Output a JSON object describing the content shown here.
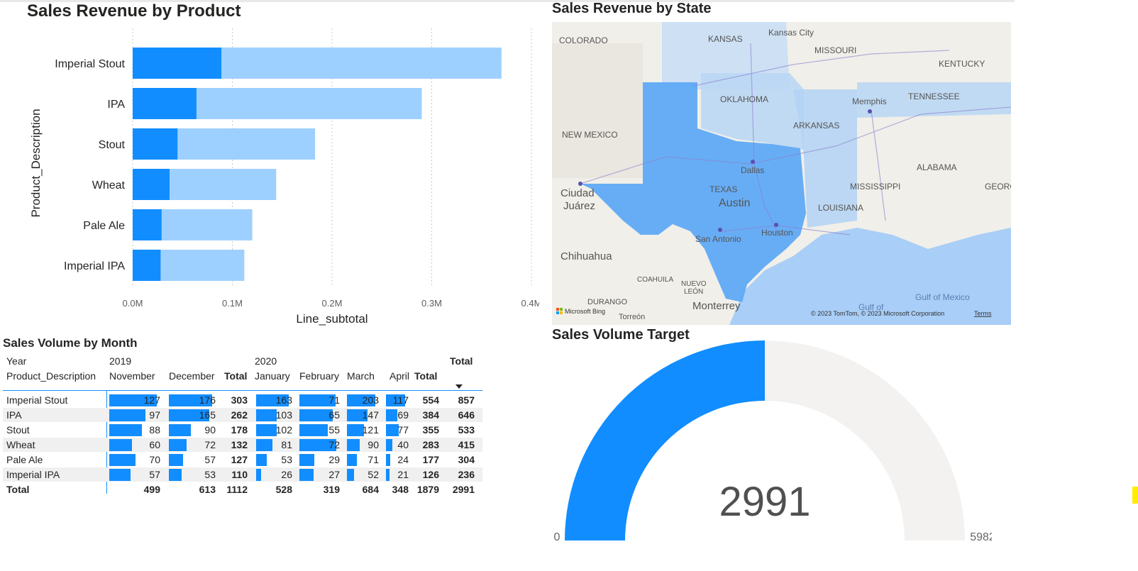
{
  "bar_chart": {
    "title": "Sales Revenue by Product",
    "chart_data": {
      "type": "bar",
      "orientation": "horizontal",
      "title": "Sales Revenue by Product",
      "xlabel": "Line_subtotal",
      "ylabel": "Product_Description",
      "categories": [
        "Imperial Stout",
        "IPA",
        "Stout",
        "Wheat",
        "Pale Ale",
        "Imperial IPA"
      ],
      "series": [
        {
          "values": [
            0.089,
            0.064,
            0.045,
            0.037,
            0.029,
            0.028
          ]
        },
        {
          "values": [
            0.37,
            0.29,
            0.183,
            0.144,
            0.12,
            0.112
          ]
        }
      ],
      "xticks": [
        "0.0M",
        "0.1M",
        "0.2M",
        "0.3M",
        "0.4M"
      ],
      "xlim": [
        0,
        0.4
      ],
      "grid": true,
      "colors": [
        "#118dff",
        "#9ed0ff"
      ]
    }
  },
  "map": {
    "title": "Sales Revenue by State",
    "labels": {
      "colorado": "COLORADO",
      "kansas": "KANSAS",
      "kansas_city": "Kansas City",
      "missouri": "MISSOURI",
      "kentucky": "KENTUCKY",
      "oklahoma": "OKLAHOMA",
      "memphis": "Memphis",
      "tennessee": "TENNESSEE",
      "new_mexico": "NEW MEXICO",
      "arkansas": "ARKANSAS",
      "dallas": "Dallas",
      "alabama": "ALABAMA",
      "ciudad": "Ciudad",
      "juarez": "Juárez",
      "texas": "TEXAS",
      "austin": "Austin",
      "mississippi": "MISSISSIPPI",
      "georgia": "GEORGI",
      "louisiana": "LOUISIANA",
      "houston": "Houston",
      "san_antonio": "San Antonio",
      "chihuahua": "Chihuahua",
      "coahuila": "COAHUILA",
      "nuevo": "NUEVO",
      "leon": "LEÓN",
      "durango": "DURANGO",
      "torreon": "Torreón",
      "monterrey": "Monterrey",
      "gulf_of": "Gulf of",
      "gulf_of_mexico": "Gulf of Mexico",
      "bing": "Microsoft Bing",
      "copyright": "© 2023 TomTom, © 2023 Microsoft Corporation",
      "terms": "Terms"
    }
  },
  "matrix": {
    "title": "Sales Volume by Month",
    "header": {
      "year_label": "Year",
      "product_label": "Product_Description",
      "year_2019": "2019",
      "year_2020": "2020",
      "total_top": "Total",
      "months": [
        "November",
        "December",
        "Total",
        "January",
        "February",
        "March",
        "April",
        "Total"
      ],
      "sort_icon": "sort-descending-icon"
    },
    "rows": [
      {
        "name": "Imperial Stout",
        "v": [
          "127",
          "176",
          "303",
          "163",
          "71",
          "203",
          "117",
          "554",
          "857"
        ]
      },
      {
        "name": "IPA",
        "v": [
          "97",
          "165",
          "262",
          "103",
          "65",
          "147",
          "69",
          "384",
          "646"
        ]
      },
      {
        "name": "Stout",
        "v": [
          "88",
          "90",
          "178",
          "102",
          "55",
          "121",
          "77",
          "355",
          "533"
        ]
      },
      {
        "name": "Wheat",
        "v": [
          "60",
          "72",
          "132",
          "81",
          "72",
          "90",
          "40",
          "283",
          "415"
        ]
      },
      {
        "name": "Pale Ale",
        "v": [
          "70",
          "57",
          "127",
          "53",
          "29",
          "71",
          "24",
          "177",
          "304"
        ]
      },
      {
        "name": "Imperial IPA",
        "v": [
          "57",
          "53",
          "110",
          "26",
          "27",
          "52",
          "21",
          "126",
          "236"
        ]
      }
    ],
    "total_row": {
      "name": "Total",
      "v": [
        "499",
        "613",
        "1112",
        "528",
        "319",
        "684",
        "348",
        "1879",
        "2991"
      ]
    }
  },
  "gauge": {
    "title": "Sales Volume Target",
    "value": "2991",
    "min": "0",
    "max": "5982",
    "fill_fraction": 0.5,
    "color": "#118dff",
    "track_color": "#f3f2f1"
  }
}
